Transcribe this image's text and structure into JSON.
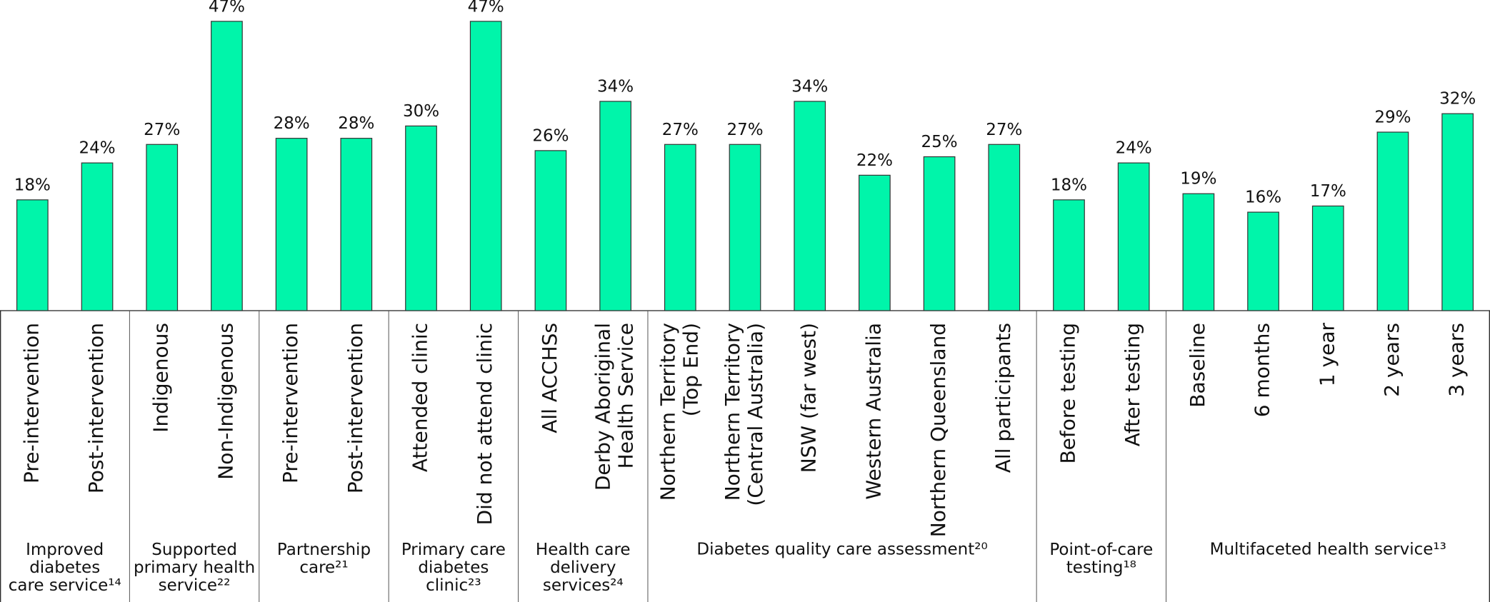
{
  "chart_data": {
    "type": "bar",
    "color": "#00f5aa",
    "ylim": [
      0,
      50
    ],
    "groups": [
      {
        "label": "Improved\ndiabetes\ncare service¹⁴",
        "categories": [
          "Pre-intervention",
          "Post-intervention"
        ],
        "values": [
          18,
          24
        ],
        "value_labels": [
          "18%",
          "24%"
        ]
      },
      {
        "label": "Supported\nprimary health\nservice²²",
        "categories": [
          "Indigenous",
          "Non-Indigenous"
        ],
        "values": [
          27,
          47
        ],
        "value_labels": [
          "27%",
          "47%"
        ]
      },
      {
        "label": "Partnership\ncare²¹",
        "categories": [
          "Pre-intervention",
          "Post-intervention"
        ],
        "values": [
          28,
          28
        ],
        "value_labels": [
          "28%",
          "28%"
        ]
      },
      {
        "label": "Primary care\ndiabetes\nclinic²³",
        "categories": [
          "Attended clinic",
          "Did not attend clinic"
        ],
        "values": [
          30,
          47
        ],
        "value_labels": [
          "30%",
          "47%"
        ]
      },
      {
        "label": "Health care\ndelivery\nservices²⁴",
        "categories": [
          "All ACCHSs",
          "Derby Aboriginal\nHealth Service"
        ],
        "values": [
          26,
          34
        ],
        "value_labels": [
          "26%",
          "34%"
        ]
      },
      {
        "label": "Diabetes quality care assessment²⁰",
        "categories": [
          "Northern Territory\n(Top End)",
          "Northern Territory\n(Central Australia)",
          "NSW (far west)",
          "Western Australia",
          "Northern Queensland",
          "All participants"
        ],
        "values": [
          27,
          27,
          34,
          22,
          25,
          27
        ],
        "value_labels": [
          "27%",
          "27%",
          "34%",
          "22%",
          "25%",
          "27%"
        ]
      },
      {
        "label": "Point-of-care\ntesting¹⁸",
        "categories": [
          "Before testing",
          "After testing"
        ],
        "values": [
          18,
          24
        ],
        "value_labels": [
          "18%",
          "24%"
        ]
      },
      {
        "label": "Multifaceted health service¹³",
        "categories": [
          "Baseline",
          "6 months",
          "1 year",
          "2 years",
          "3 years"
        ],
        "values": [
          19,
          16,
          17,
          29,
          32
        ],
        "value_labels": [
          "19%",
          "16%",
          "17%",
          "29%",
          "32%"
        ]
      }
    ]
  }
}
